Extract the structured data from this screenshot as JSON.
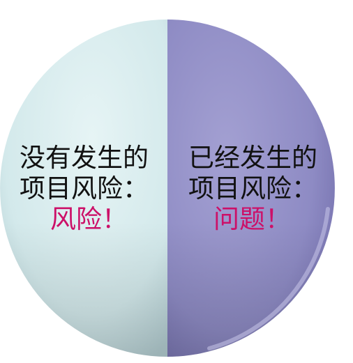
{
  "left_half": {
    "line1": "没有发生的",
    "line2": "项目风险：",
    "result": "风险！",
    "color": "#d6ecee"
  },
  "right_half": {
    "line1": "已经发生的",
    "line2": "项目风险：",
    "result": "问题！",
    "color": "#8f8cc2"
  },
  "accent_color": "#cc1068"
}
